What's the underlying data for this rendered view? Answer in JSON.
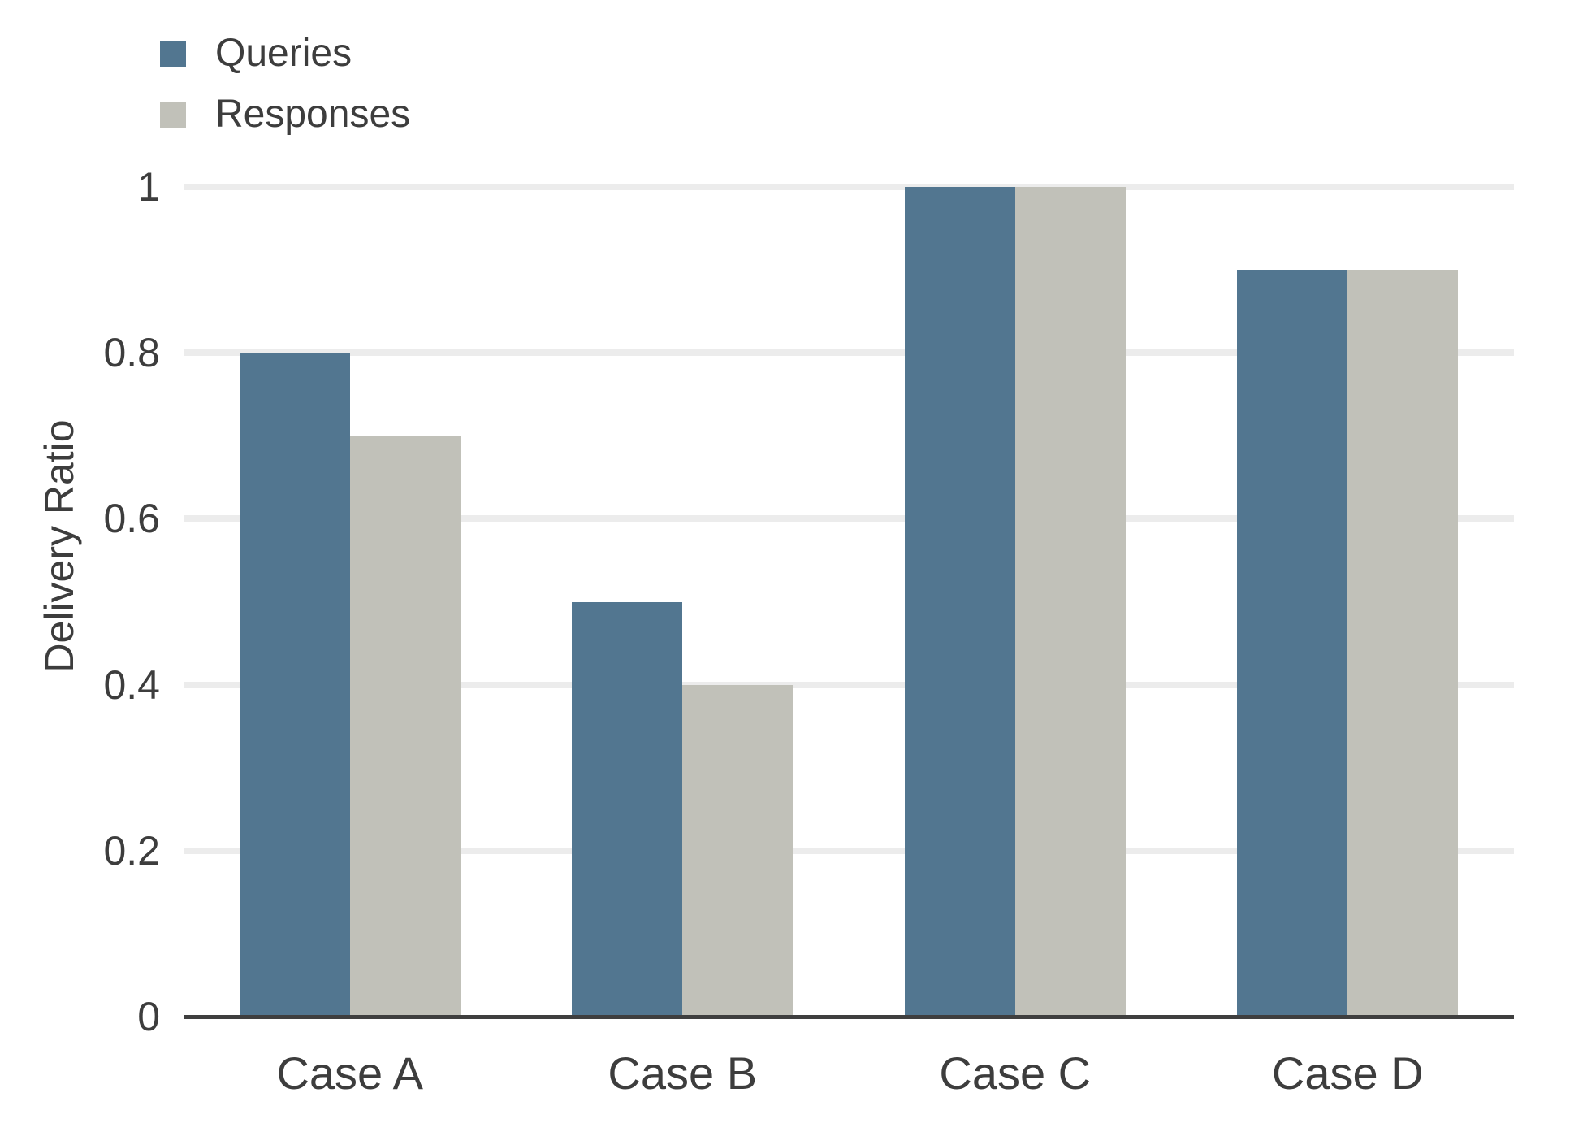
{
  "chart_data": {
    "type": "bar",
    "title": "",
    "xlabel": "",
    "ylabel": "Delivery Ratio",
    "categories": [
      "Case A",
      "Case B",
      "Case C",
      "Case D"
    ],
    "series": [
      {
        "name": "Queries",
        "color": "#527690",
        "values": [
          0.8,
          0.5,
          1.0,
          0.9
        ]
      },
      {
        "name": "Responses",
        "color": "#c1c1b9",
        "values": [
          0.7,
          0.4,
          1.0,
          0.9
        ]
      }
    ],
    "ylim": [
      0,
      1
    ],
    "yticks": [
      0,
      0.2,
      0.4,
      0.6,
      0.8,
      1
    ],
    "ytick_labels": [
      "0",
      "0.2",
      "0.4",
      "0.6",
      "0.8",
      "1"
    ],
    "grid": true,
    "gridline_values": [
      0.2,
      0.4,
      0.6,
      0.8,
      1
    ],
    "legend_position": "top-left"
  },
  "colors": {
    "background": "#ffffff",
    "gridline": "#ececec",
    "axis_line": "#3f3f3f",
    "text": "#3d3d3d"
  }
}
